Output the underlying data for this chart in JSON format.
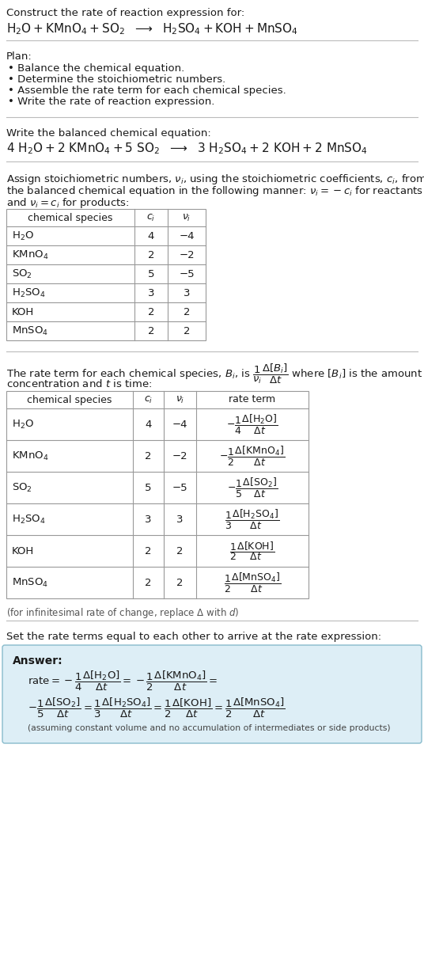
{
  "bg_color": "#ffffff",
  "text_color": "#1a1a1a",
  "table_border_color": "#999999",
  "separator_color": "#bbbbbb",
  "answer_box_color": "#ddeef6",
  "answer_box_border": "#88bbcc",
  "title_line1": "Construct the rate of reaction expression for:",
  "plan_header": "Plan:",
  "plan_items": [
    "• Balance the chemical equation.",
    "• Determine the stoichiometric numbers.",
    "• Assemble the rate term for each chemical species.",
    "• Write the rate of reaction expression."
  ],
  "balanced_header": "Write the balanced chemical equation:",
  "stoich_para1": "Assign stoichiometric numbers, $\\nu_i$, using the stoichiometric coefficients, $c_i$, from",
  "stoich_para2": "the balanced chemical equation in the following manner: $\\nu_i = -c_i$ for reactants",
  "stoich_para3": "and $\\nu_i = c_i$ for products:",
  "table1_headers": [
    "chemical species",
    "$c_i$",
    "$\\nu_i$"
  ],
  "table1_species": [
    "H$_2$O",
    "KMnO$_4$",
    "SO$_2$",
    "H$_2$SO$_4$",
    "KOH",
    "MnSO$_4$"
  ],
  "table1_ci": [
    "4",
    "2",
    "5",
    "3",
    "2",
    "2"
  ],
  "table1_ni": [
    "−4",
    "−2",
    "−5",
    "3",
    "2",
    "2"
  ],
  "rate_para1": "The rate term for each chemical species, $B_i$, is $\\dfrac{1}{\\nu_i}\\dfrac{\\Delta[B_i]}{\\Delta t}$ where $[B_i]$ is the amount",
  "rate_para2": "concentration and $t$ is time:",
  "table2_headers": [
    "chemical species",
    "$c_i$",
    "$\\nu_i$",
    "rate term"
  ],
  "table2_species": [
    "H$_2$O",
    "KMnO$_4$",
    "SO$_2$",
    "H$_2$SO$_4$",
    "KOH",
    "MnSO$_4$"
  ],
  "table2_ci": [
    "4",
    "2",
    "5",
    "3",
    "2",
    "2"
  ],
  "table2_ni": [
    "−4",
    "−2",
    "−5",
    "3",
    "2",
    "2"
  ],
  "table2_rate": [
    "$-\\dfrac{1}{4}\\dfrac{\\Delta[\\mathrm{H_2O}]}{\\Delta t}$",
    "$-\\dfrac{1}{2}\\dfrac{\\Delta[\\mathrm{KMnO_4}]}{\\Delta t}$",
    "$-\\dfrac{1}{5}\\dfrac{\\Delta[\\mathrm{SO_2}]}{\\Delta t}$",
    "$\\dfrac{1}{3}\\dfrac{\\Delta[\\mathrm{H_2SO_4}]}{\\Delta t}$",
    "$\\dfrac{1}{2}\\dfrac{\\Delta[\\mathrm{KOH}]}{\\Delta t}$",
    "$\\dfrac{1}{2}\\dfrac{\\Delta[\\mathrm{MnSO_4}]}{\\Delta t}$"
  ],
  "infinitesimal_note": "(for infinitesimal rate of change, replace Δ with $d$)",
  "set_equal_text": "Set the rate terms equal to each other to arrive at the rate expression:",
  "answer_header": "Answer:"
}
